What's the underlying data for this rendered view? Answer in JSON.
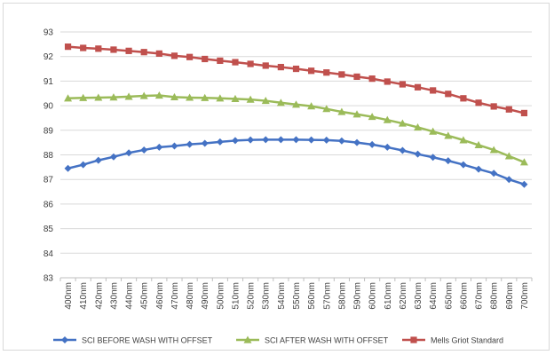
{
  "chart_data": {
    "type": "line",
    "title": "",
    "xlabel": "",
    "ylabel": "",
    "ylim": [
      83,
      93
    ],
    "y_ticks": [
      93,
      92,
      91,
      90,
      89,
      88,
      87,
      86,
      85,
      84,
      83
    ],
    "grid": "horizontal",
    "legend_position": "bottom",
    "categories": [
      "400nm",
      "410nm",
      "420nm",
      "430nm",
      "440nm",
      "450nm",
      "460nm",
      "470nm",
      "480nm",
      "490nm",
      "500nm",
      "510nm",
      "520nm",
      "530nm",
      "540nm",
      "550nm",
      "560nm",
      "570nm",
      "580nm",
      "590nm",
      "600nm",
      "610nm",
      "620nm",
      "630nm",
      "640nm",
      "650nm",
      "660nm",
      "670nm",
      "680nm",
      "690nm",
      "700nm"
    ],
    "series": [
      {
        "name": "SCI BEFORE WASH WITH OFFSET",
        "color": "#4472C4",
        "marker": "diamond",
        "values": [
          87.45,
          87.6,
          87.78,
          87.92,
          88.08,
          88.2,
          88.31,
          88.36,
          88.43,
          88.47,
          88.53,
          88.58,
          88.61,
          88.62,
          88.62,
          88.62,
          88.61,
          88.6,
          88.57,
          88.5,
          88.42,
          88.31,
          88.18,
          88.03,
          87.9,
          87.76,
          87.6,
          87.42,
          87.25,
          87.0,
          86.8
        ]
      },
      {
        "name": "SCI AFTER WASH WITH OFFSET",
        "color": "#9BBB59",
        "marker": "triangle",
        "values": [
          90.3,
          90.32,
          90.33,
          90.34,
          90.37,
          90.4,
          90.42,
          90.35,
          90.33,
          90.32,
          90.3,
          90.28,
          90.25,
          90.2,
          90.12,
          90.05,
          89.98,
          89.87,
          89.75,
          89.65,
          89.55,
          89.42,
          89.28,
          89.12,
          88.95,
          88.78,
          88.6,
          88.4,
          88.2,
          87.95,
          87.7
        ]
      },
      {
        "name": "Mells Griot Standard",
        "color": "#C0504D",
        "marker": "square",
        "values": [
          92.4,
          92.35,
          92.32,
          92.28,
          92.23,
          92.18,
          92.12,
          92.03,
          91.98,
          91.9,
          91.83,
          91.77,
          91.7,
          91.63,
          91.57,
          91.5,
          91.42,
          91.35,
          91.27,
          91.18,
          91.1,
          90.98,
          90.87,
          90.75,
          90.62,
          90.48,
          90.3,
          90.12,
          89.97,
          89.85,
          89.7
        ]
      }
    ]
  }
}
